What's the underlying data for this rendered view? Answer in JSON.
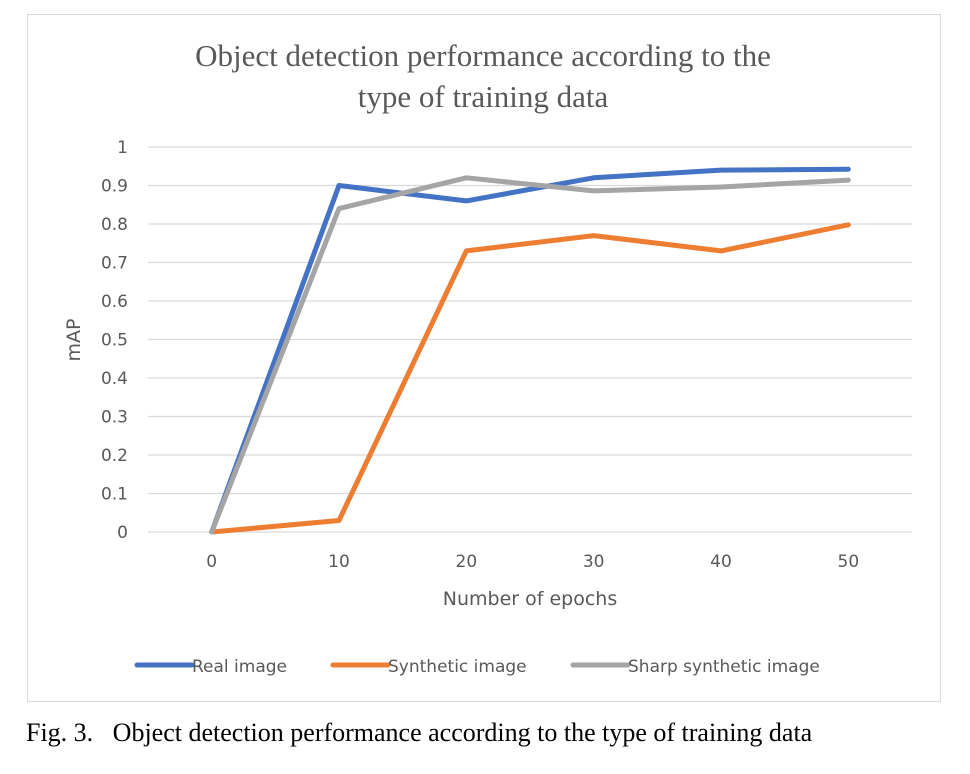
{
  "chart_data": {
    "type": "line",
    "title": "Object detection performance according to the type of training data",
    "title_lines": [
      "Object detection performance according to the",
      "type of training data"
    ],
    "xlabel": "Number of epochs",
    "ylabel": "mAP",
    "x": [
      0,
      10,
      20,
      30,
      40,
      50
    ],
    "x_tick_labels": [
      "0",
      "10",
      "20",
      "30",
      "40",
      "50"
    ],
    "ylim": [
      0,
      1
    ],
    "y_tick_labels": [
      "0",
      "0.1",
      "0.2",
      "0.3",
      "0.4",
      "0.5",
      "0.6",
      "0.7",
      "0.8",
      "0.9",
      "1"
    ],
    "grid": "horizontal",
    "legend_position": "bottom",
    "series": [
      {
        "name": "Real image",
        "color": "#4472c4",
        "values": [
          0,
          0.9,
          0.86,
          0.92,
          0.94,
          0.942
        ]
      },
      {
        "name": "Synthetic image",
        "color": "#ed7d31",
        "values": [
          0,
          0.03,
          0.73,
          0.77,
          0.73,
          0.798
        ]
      },
      {
        "name": "Sharp synthetic image",
        "color": "#a5a5a5",
        "values": [
          0,
          0.84,
          0.92,
          0.886,
          0.896,
          0.914
        ]
      }
    ]
  },
  "caption": "Fig. 3.   Object detection performance according to the type of training data"
}
